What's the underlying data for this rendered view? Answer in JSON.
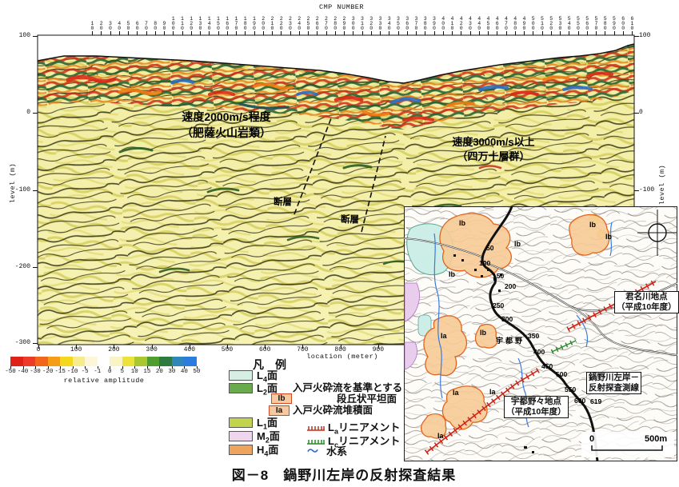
{
  "figure": {
    "title_prefix": "図－8",
    "title_text": "鍋野川左岸の反射探査結果"
  },
  "chart_data": {
    "type": "heatmap",
    "title": "seismic reflection depth section (migrated, color amplitude)",
    "x_axis": {
      "label": "location (meter)",
      "ticks": [
        0,
        100,
        200,
        300,
        400,
        500,
        600,
        700,
        800,
        900
      ]
    },
    "top_axis": {
      "label": "CMP NUMBER",
      "first": 10,
      "last": 610,
      "step": 10
    },
    "y_axis": {
      "label": "level (m)",
      "ticks": [
        100,
        0,
        -100,
        -200,
        -300
      ]
    },
    "colorbar": {
      "label": "relative amplitude",
      "ticks": [
        -50,
        -40,
        -30,
        -20,
        -15,
        -10,
        -5,
        -1,
        0,
        5,
        10,
        15,
        20,
        30,
        40,
        50
      ]
    },
    "annotations": [
      "速度2000m/s程度（肥薩火山岩類）",
      "速度3000m/s以上（四万十層群）",
      "断層",
      "断層"
    ]
  },
  "section": {
    "top_axis_title": "CMP NUMBER",
    "cmp_labels": [
      "10",
      "20",
      "30",
      "40",
      "50",
      "60",
      "70",
      "80",
      "90",
      "100",
      "110",
      "120",
      "130",
      "140",
      "150",
      "160",
      "170",
      "180",
      "190",
      "200",
      "210",
      "220",
      "230",
      "240",
      "250",
      "260",
      "270",
      "280",
      "290",
      "300",
      "310",
      "320",
      "330",
      "340",
      "350",
      "360",
      "370",
      "380",
      "390",
      "400",
      "410",
      "420",
      "430",
      "440",
      "450",
      "460",
      "470",
      "480",
      "490",
      "500",
      "510",
      "520",
      "530",
      "540",
      "550",
      "560",
      "570",
      "580",
      "590",
      "600",
      "610"
    ],
    "left_axis_labels": [
      "100",
      "0",
      "-100",
      "-200",
      "-300"
    ],
    "right_axis_labels": [
      "100",
      "0",
      "-100"
    ],
    "y_axis_title": "level (m)",
    "bottom_axis_labels": [
      "0",
      "100",
      "200",
      "300",
      "400",
      "500",
      "600",
      "700",
      "800",
      "900"
    ],
    "bottom_axis_title": "location (meter)",
    "annotations": {
      "velocity1_line1": "速度2000m/s程度",
      "velocity1_line2": "（肥薩火山岩類）",
      "velocity2_line1": "速度3000m/s以上",
      "velocity2_line2": "（四万十層群）",
      "fault1": "断層",
      "fault2": "断層"
    }
  },
  "colorbar": {
    "ticks": [
      "-50",
      "-40",
      "-30",
      "-20",
      "-15",
      "-10",
      "-5",
      "-1",
      "0",
      "5",
      "10",
      "15",
      "20",
      "30",
      "40",
      "50"
    ],
    "segment_colors": [
      "#df2118",
      "#ee3a28",
      "#f1661c",
      "#f59d16",
      "#f3d91e",
      "#f7eb8e",
      "#fdf7d8",
      "#ffffff",
      "#faf3c4",
      "#ece23a",
      "#a9c72f",
      "#4f9d2f",
      "#2e7a41",
      "#2f86b8",
      "#2b7ce0"
    ],
    "label": "relative amplitude"
  },
  "legend": {
    "title": "凡　例",
    "surfaces": [
      {
        "prefix": "L",
        "sub": "4",
        "suffix": "面",
        "color": "#d6eee4"
      },
      {
        "prefix": "L",
        "sub": "2",
        "suffix": "面",
        "color": "#69aa4e"
      },
      {
        "prefix": "L",
        "sub": "1",
        "suffix": "面",
        "color": "#c2d44c"
      },
      {
        "prefix": "M",
        "sub": "2",
        "suffix": "面",
        "color": "#eed6ec"
      },
      {
        "prefix": "H",
        "sub": "4",
        "suffix": "面",
        "color": "#eea45c"
      }
    ],
    "ito_note_line1": "入戸火砕流を基準とする",
    "ito_note_line2": "段丘状平坦面",
    "ib_label": "Ib",
    "ia_label": "Ia",
    "ia_text": "入戸火砕流堆積面",
    "lineaments": [
      {
        "prefix": "L",
        "sub": "a",
        "suffix": "リニアメント",
        "color": "#c0301c"
      },
      {
        "prefix": "L",
        "sub": "c",
        "suffix": "リニアメント",
        "color": "#2a8a2a"
      }
    ],
    "water": {
      "symbol": "～",
      "label": "水系",
      "color": "#3a6cc8"
    }
  },
  "map": {
    "labels": {
      "kiminagawa_line1": "君名川地点",
      "kiminagawa_line2": "（平成10年度）",
      "line_name_line1": "鍋野川左岸－",
      "line_name_line2": "反射探査測線",
      "utonono_line1": "宇都野々地点",
      "utonono_line2": "（平成10年度）",
      "place": "宇都野"
    },
    "scale": {
      "left": "0",
      "right": "500m"
    },
    "station_labels": [
      "50",
      "100",
      "150",
      "200",
      "250",
      "300",
      "350",
      "400",
      "450",
      "500",
      "550",
      "600",
      "619"
    ],
    "ib_label": "Ib",
    "ia_label": "Ia"
  }
}
